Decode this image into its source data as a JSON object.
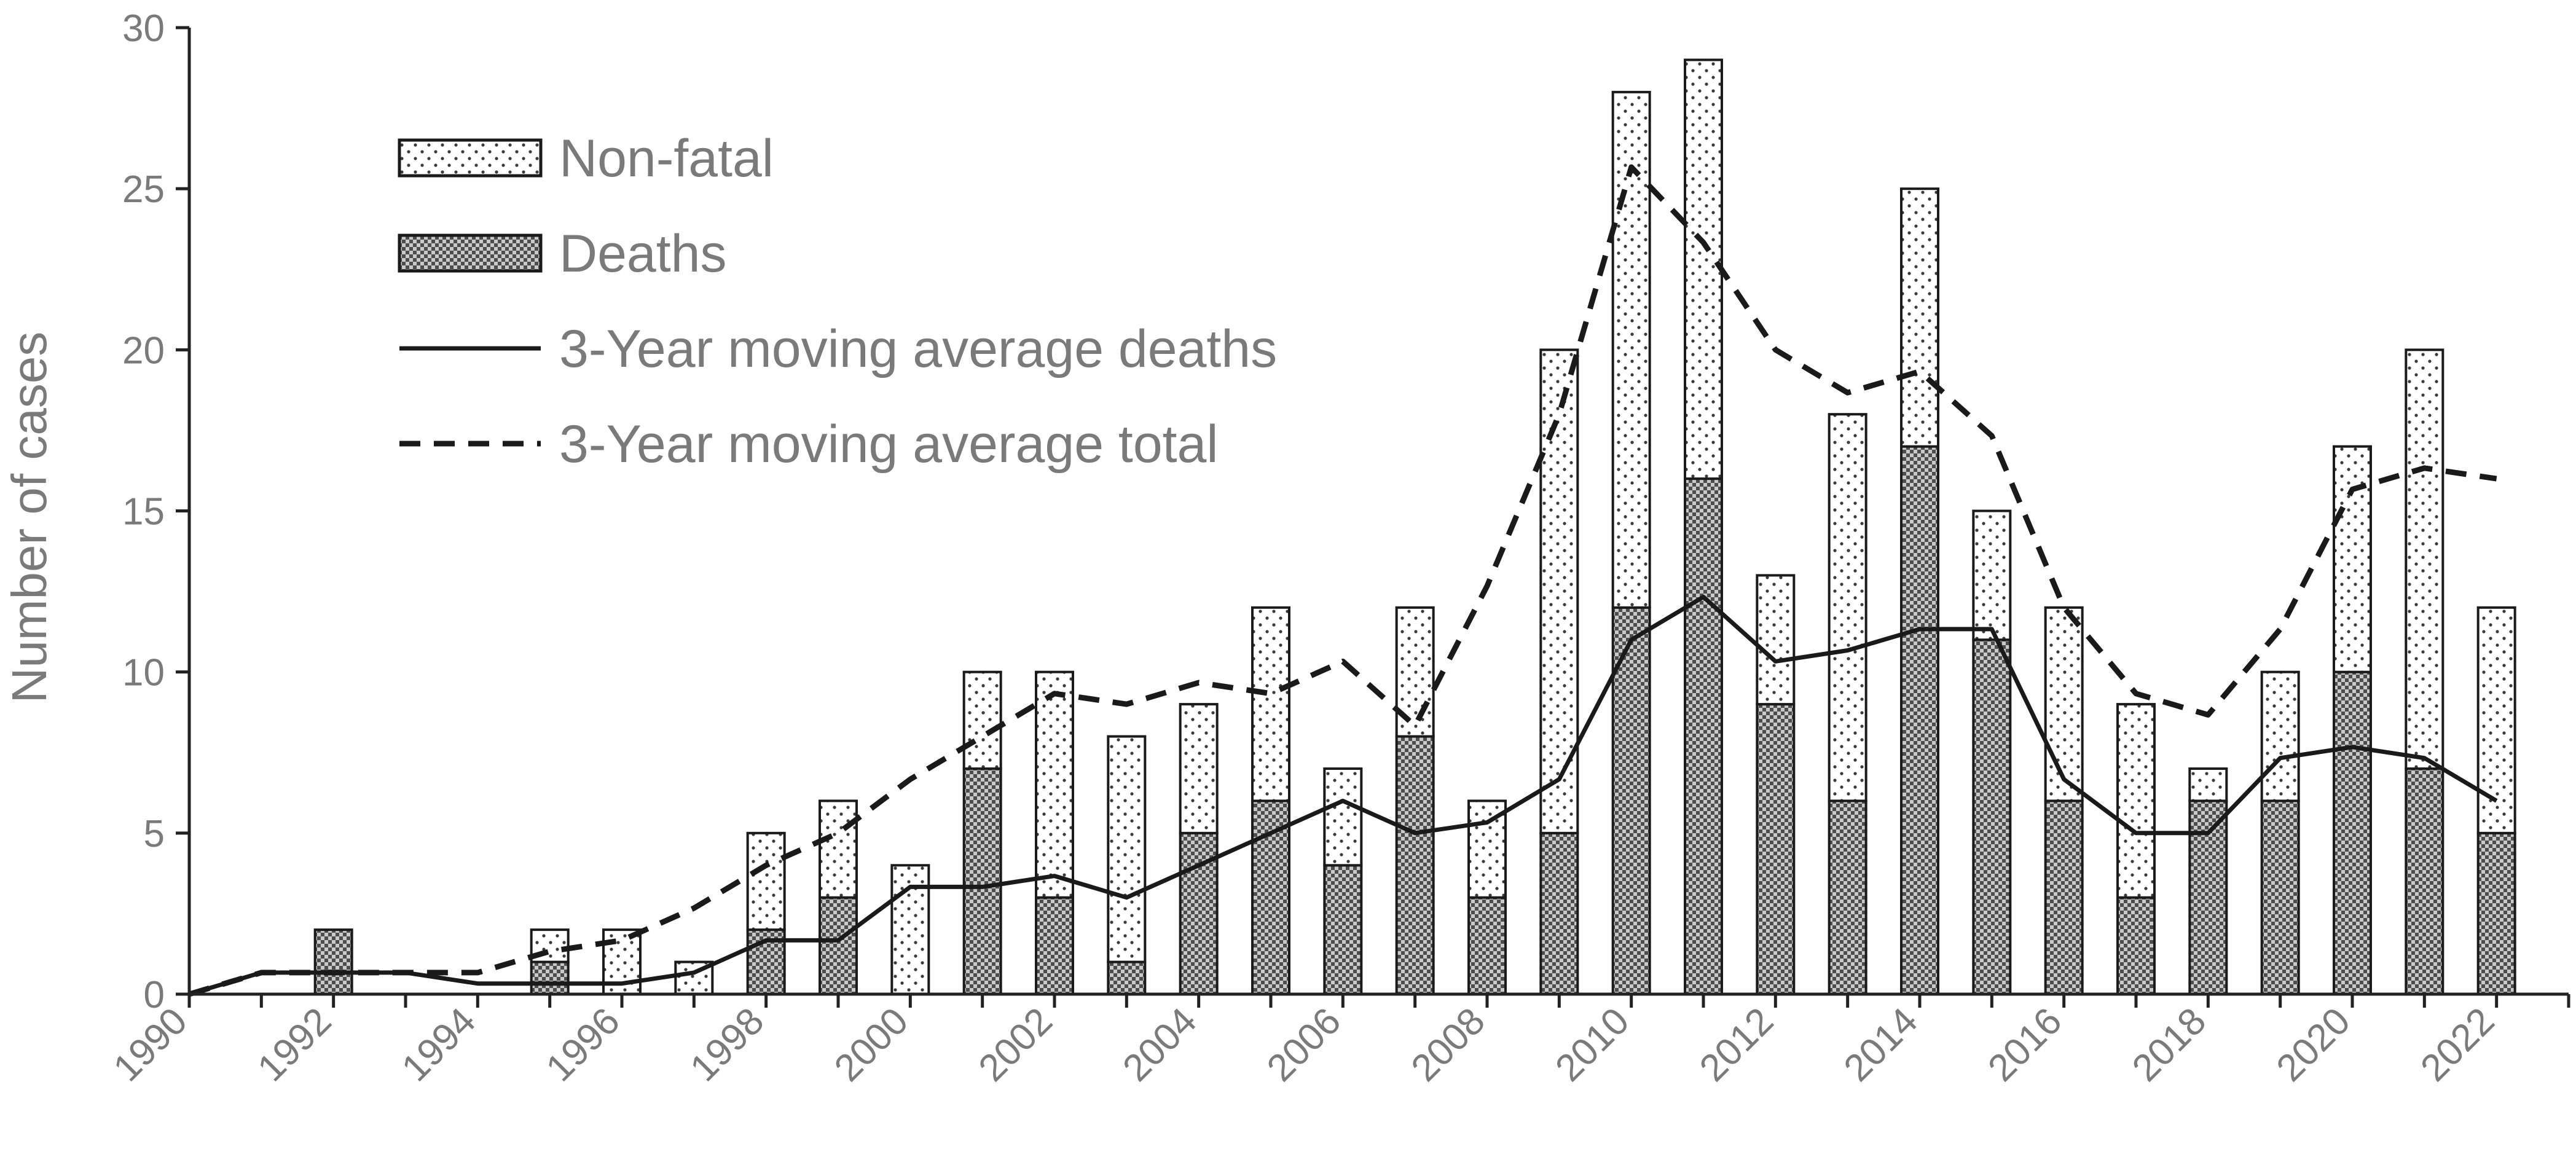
{
  "chart_data": {
    "type": "bar",
    "stacked": true,
    "ylabel": "Number of cases",
    "xlabel": "",
    "ylim": [
      0,
      30
    ],
    "yticks": [
      0,
      5,
      10,
      15,
      20,
      25,
      30
    ],
    "x_range": [
      1990,
      2023
    ],
    "xtick_labels": [
      "1990",
      "1992",
      "1994",
      "1996",
      "1998",
      "2000",
      "2002",
      "2004",
      "2006",
      "2008",
      "2010",
      "2012",
      "2014",
      "2016",
      "2018",
      "2020",
      "2022"
    ],
    "grid": false,
    "legend_position": "top-left",
    "bar_series": [
      {
        "name": "Deaths",
        "pattern": "dense-dot",
        "x": [
          1992,
          1995,
          1998,
          1999,
          2001,
          2002,
          2003,
          2004,
          2005,
          2006,
          2007,
          2008,
          2009,
          2010,
          2011,
          2012,
          2013,
          2014,
          2015,
          2016,
          2017,
          2018,
          2019,
          2020,
          2021,
          2022
        ],
        "values": [
          2,
          1,
          2,
          3,
          7,
          3,
          1,
          5,
          6,
          4,
          8,
          3,
          5,
          12,
          16,
          9,
          6,
          17,
          11,
          6,
          3,
          6,
          6,
          10,
          7,
          5
        ]
      },
      {
        "name": "Non-fatal",
        "pattern": "sparse-dot",
        "x": [
          1995,
          1996,
          1997,
          1998,
          1999,
          2000,
          2001,
          2002,
          2003,
          2004,
          2005,
          2006,
          2007,
          2008,
          2009,
          2010,
          2011,
          2012,
          2013,
          2014,
          2015,
          2016,
          2017,
          2018,
          2019,
          2020,
          2021,
          2022
        ],
        "values": [
          1,
          2,
          1,
          3,
          3,
          4,
          3,
          7,
          7,
          4,
          6,
          3,
          4,
          3,
          15,
          16,
          13,
          4,
          12,
          8,
          4,
          6,
          6,
          1,
          4,
          7,
          13,
          7
        ]
      }
    ],
    "line_series": [
      {
        "name": "3-Year moving average deaths",
        "style": "solid",
        "x": [
          1990,
          1991,
          1992,
          1993,
          1994,
          1995,
          1996,
          1997,
          1998,
          1999,
          2000,
          2001,
          2002,
          2003,
          2004,
          2005,
          2006,
          2007,
          2008,
          2009,
          2010,
          2011,
          2012,
          2013,
          2014,
          2015,
          2016,
          2017,
          2018,
          2019,
          2020,
          2021,
          2022
        ],
        "values": [
          0,
          0.67,
          0.67,
          0.67,
          0.33,
          0.33,
          0.33,
          0.67,
          1.67,
          1.67,
          3.33,
          3.33,
          3.67,
          3.0,
          4.0,
          5.0,
          6.0,
          5.0,
          5.33,
          6.67,
          11.0,
          12.33,
          10.33,
          10.67,
          11.33,
          11.33,
          6.67,
          5.0,
          5.0,
          7.33,
          7.67,
          7.33,
          6.0
        ]
      },
      {
        "name": "3-Year moving average total",
        "style": "dashed",
        "x": [
          1990,
          1991,
          1992,
          1993,
          1994,
          1995,
          1996,
          1997,
          1998,
          1999,
          2000,
          2001,
          2002,
          2003,
          2004,
          2005,
          2006,
          2007,
          2008,
          2009,
          2010,
          2011,
          2012,
          2013,
          2014,
          2015,
          2016,
          2017,
          2018,
          2019,
          2020,
          2021,
          2022
        ],
        "values": [
          0,
          0.67,
          0.67,
          0.67,
          0.67,
          1.33,
          1.67,
          2.67,
          4.0,
          5.0,
          6.67,
          8.0,
          9.33,
          9.0,
          9.67,
          9.33,
          10.33,
          8.33,
          12.67,
          18.0,
          25.67,
          23.33,
          20.0,
          18.67,
          19.33,
          17.33,
          12.0,
          9.33,
          8.67,
          11.33,
          15.67,
          16.33,
          16.0
        ]
      }
    ],
    "legend": [
      {
        "label": "Non-fatal",
        "kind": "bar",
        "pattern": "sparse-dot"
      },
      {
        "label": "Deaths",
        "kind": "bar",
        "pattern": "dense-dot"
      },
      {
        "label": "3-Year moving average deaths",
        "kind": "line",
        "style": "solid"
      },
      {
        "label": "3-Year moving average total",
        "kind": "line",
        "style": "dashed"
      }
    ],
    "colors": {
      "axis": "#222222",
      "bar_outline": "#1a1a1a",
      "line": "#1a1a1a",
      "text": "#7a7a7a"
    }
  }
}
